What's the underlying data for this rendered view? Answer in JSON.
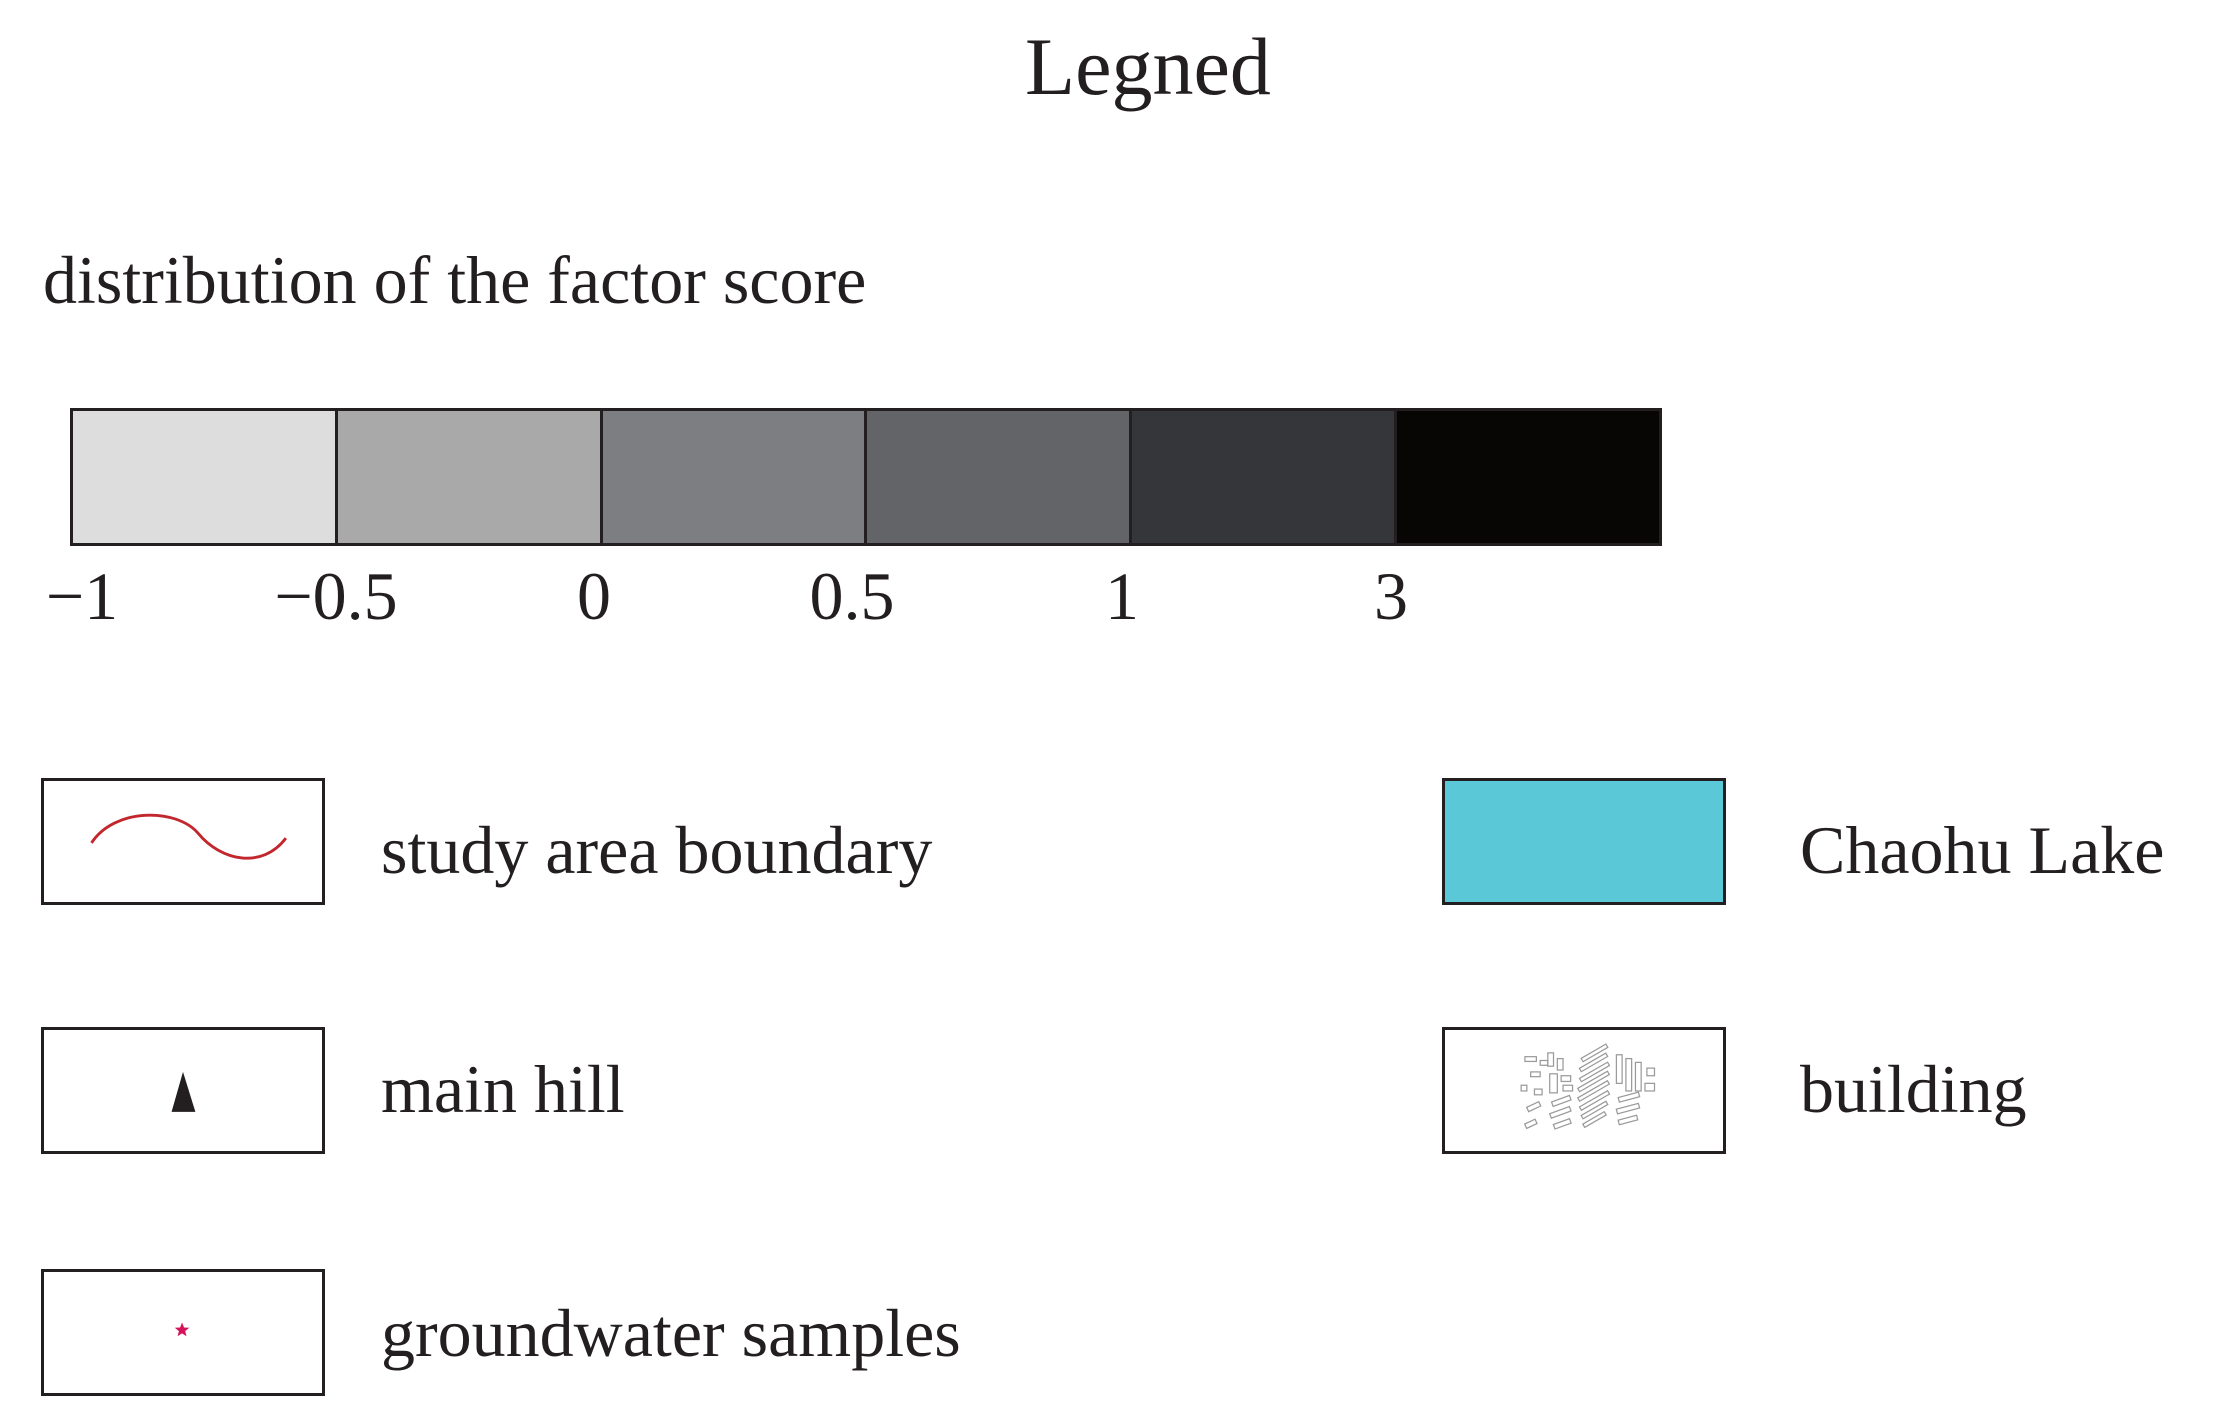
{
  "title": "Legned",
  "factor_score": {
    "heading": "distribution of the factor score",
    "colors": [
      "#dddddd",
      "#a9a9aa",
      "#7d7e81",
      "#636467",
      "#35363a",
      "#070604"
    ],
    "ticks": [
      "−1",
      "−0.5",
      "0",
      "0.5",
      "1",
      "3"
    ]
  },
  "legend_items": {
    "boundary": {
      "label": "study area boundary",
      "line_color": "#c1272d"
    },
    "lake": {
      "label": "Chaohu Lake",
      "fill_color": "#5bc8d8"
    },
    "hill": {
      "label": "main hill",
      "icon": "triangle-icon"
    },
    "building": {
      "label": "building",
      "icon": "building-cluster-icon"
    },
    "samples": {
      "label": "groundwater samples",
      "star_color": "#d4145a"
    }
  }
}
